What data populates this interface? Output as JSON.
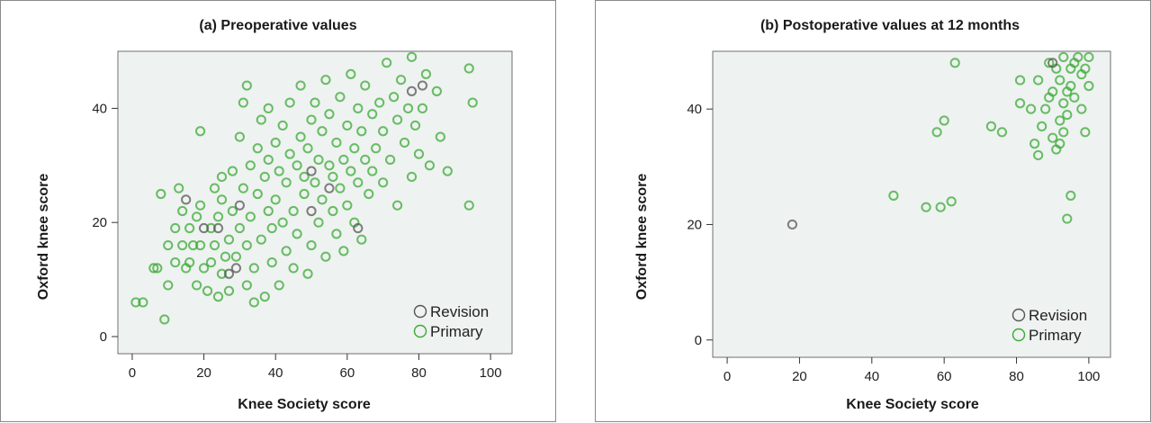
{
  "chart_data": [
    {
      "type": "scatter",
      "title": "(a) Preoperative values",
      "xlabel": "Knee Society score",
      "ylabel": "Oxford knee score",
      "xlim": [
        -4,
        106
      ],
      "ylim": [
        -3,
        50
      ],
      "xticks": [
        0,
        20,
        40,
        60,
        80,
        100
      ],
      "yticks": [
        0,
        20,
        40
      ],
      "grid": false,
      "legend_position": "bottom-right",
      "series": [
        {
          "name": "Revision",
          "color": "#555555",
          "marker": "open-circle",
          "points": [
            [
              15,
              24
            ],
            [
              20,
              19
            ],
            [
              24,
              19
            ],
            [
              27,
              11
            ],
            [
              29,
              12
            ],
            [
              30,
              23
            ],
            [
              50,
              29
            ],
            [
              50,
              22
            ],
            [
              55,
              26
            ],
            [
              63,
              19
            ],
            [
              78,
              43
            ],
            [
              81,
              44
            ]
          ]
        },
        {
          "name": "Primary",
          "color": "#3aaa35",
          "marker": "open-circle",
          "points": [
            [
              1,
              6
            ],
            [
              3,
              6
            ],
            [
              6,
              12
            ],
            [
              7,
              12
            ],
            [
              8,
              25
            ],
            [
              9,
              3
            ],
            [
              10,
              16
            ],
            [
              10,
              9
            ],
            [
              12,
              19
            ],
            [
              12,
              13
            ],
            [
              13,
              26
            ],
            [
              14,
              22
            ],
            [
              14,
              16
            ],
            [
              15,
              12
            ],
            [
              16,
              19
            ],
            [
              16,
              13
            ],
            [
              17,
              16
            ],
            [
              18,
              21
            ],
            [
              18,
              9
            ],
            [
              19,
              36
            ],
            [
              19,
              23
            ],
            [
              19,
              16
            ],
            [
              20,
              12
            ],
            [
              21,
              8
            ],
            [
              22,
              19
            ],
            [
              22,
              13
            ],
            [
              23,
              16
            ],
            [
              23,
              26
            ],
            [
              24,
              21
            ],
            [
              24,
              7
            ],
            [
              25,
              24
            ],
            [
              25,
              11
            ],
            [
              25,
              28
            ],
            [
              26,
              14
            ],
            [
              27,
              8
            ],
            [
              27,
              17
            ],
            [
              28,
              22
            ],
            [
              28,
              29
            ],
            [
              29,
              14
            ],
            [
              30,
              19
            ],
            [
              30,
              35
            ],
            [
              31,
              41
            ],
            [
              31,
              26
            ],
            [
              32,
              9
            ],
            [
              32,
              44
            ],
            [
              32,
              16
            ],
            [
              33,
              21
            ],
            [
              33,
              30
            ],
            [
              34,
              12
            ],
            [
              34,
              6
            ],
            [
              35,
              25
            ],
            [
              35,
              33
            ],
            [
              36,
              17
            ],
            [
              36,
              38
            ],
            [
              37,
              28
            ],
            [
              37,
              7
            ],
            [
              38,
              22
            ],
            [
              38,
              31
            ],
            [
              38,
              40
            ],
            [
              39,
              13
            ],
            [
              39,
              19
            ],
            [
              40,
              24
            ],
            [
              40,
              34
            ],
            [
              41,
              29
            ],
            [
              41,
              9
            ],
            [
              42,
              20
            ],
            [
              42,
              37
            ],
            [
              43,
              27
            ],
            [
              43,
              15
            ],
            [
              44,
              32
            ],
            [
              44,
              41
            ],
            [
              45,
              22
            ],
            [
              45,
              12
            ],
            [
              46,
              30
            ],
            [
              46,
              18
            ],
            [
              47,
              35
            ],
            [
              47,
              44
            ],
            [
              48,
              25
            ],
            [
              48,
              28
            ],
            [
              49,
              33
            ],
            [
              49,
              11
            ],
            [
              50,
              38
            ],
            [
              50,
              16
            ],
            [
              51,
              27
            ],
            [
              51,
              41
            ],
            [
              52,
              31
            ],
            [
              52,
              20
            ],
            [
              53,
              24
            ],
            [
              53,
              36
            ],
            [
              54,
              14
            ],
            [
              54,
              45
            ],
            [
              55,
              30
            ],
            [
              55,
              39
            ],
            [
              56,
              22
            ],
            [
              56,
              28
            ],
            [
              57,
              34
            ],
            [
              57,
              18
            ],
            [
              58,
              42
            ],
            [
              58,
              26
            ],
            [
              59,
              31
            ],
            [
              59,
              15
            ],
            [
              60,
              37
            ],
            [
              60,
              23
            ],
            [
              61,
              29
            ],
            [
              61,
              46
            ],
            [
              62,
              33
            ],
            [
              62,
              20
            ],
            [
              63,
              40
            ],
            [
              63,
              27
            ],
            [
              64,
              36
            ],
            [
              64,
              17
            ],
            [
              65,
              44
            ],
            [
              65,
              31
            ],
            [
              66,
              25
            ],
            [
              67,
              39
            ],
            [
              67,
              29
            ],
            [
              68,
              33
            ],
            [
              69,
              41
            ],
            [
              70,
              36
            ],
            [
              70,
              27
            ],
            [
              71,
              48
            ],
            [
              72,
              31
            ],
            [
              73,
              42
            ],
            [
              74,
              38
            ],
            [
              74,
              23
            ],
            [
              75,
              45
            ],
            [
              76,
              34
            ],
            [
              77,
              40
            ],
            [
              78,
              49
            ],
            [
              78,
              28
            ],
            [
              79,
              37
            ],
            [
              80,
              32
            ],
            [
              81,
              40
            ],
            [
              82,
              46
            ],
            [
              83,
              30
            ],
            [
              85,
              43
            ],
            [
              86,
              35
            ],
            [
              88,
              29
            ],
            [
              94,
              47
            ],
            [
              94,
              23
            ],
            [
              95,
              41
            ]
          ]
        }
      ]
    },
    {
      "type": "scatter",
      "title": "(b) Postoperative values at 12 months",
      "xlabel": "Knee Society score",
      "ylabel": "Oxford knee score",
      "xlim": [
        -4,
        106
      ],
      "ylim": [
        -3,
        50
      ],
      "xticks": [
        0,
        20,
        40,
        60,
        80,
        100
      ],
      "yticks": [
        0,
        20,
        40
      ],
      "grid": false,
      "legend_position": "bottom-right",
      "series": [
        {
          "name": "Revision",
          "color": "#555555",
          "marker": "open-circle",
          "points": [
            [
              18,
              20
            ],
            [
              90,
              48
            ]
          ]
        },
        {
          "name": "Primary",
          "color": "#3aaa35",
          "marker": "open-circle",
          "points": [
            [
              46,
              25
            ],
            [
              55,
              23
            ],
            [
              58,
              36
            ],
            [
              59,
              23
            ],
            [
              60,
              38
            ],
            [
              62,
              24
            ],
            [
              63,
              48
            ],
            [
              73,
              37
            ],
            [
              76,
              36
            ],
            [
              81,
              45
            ],
            [
              81,
              41
            ],
            [
              84,
              40
            ],
            [
              85,
              34
            ],
            [
              86,
              32
            ],
            [
              86,
              45
            ],
            [
              87,
              37
            ],
            [
              88,
              40
            ],
            [
              89,
              48
            ],
            [
              89,
              42
            ],
            [
              90,
              43
            ],
            [
              90,
              35
            ],
            [
              91,
              33
            ],
            [
              91,
              47
            ],
            [
              92,
              38
            ],
            [
              92,
              34
            ],
            [
              92,
              45
            ],
            [
              93,
              41
            ],
            [
              93,
              49
            ],
            [
              93,
              36
            ],
            [
              94,
              43
            ],
            [
              94,
              39
            ],
            [
              94,
              21
            ],
            [
              95,
              47
            ],
            [
              95,
              44
            ],
            [
              95,
              25
            ],
            [
              96,
              42
            ],
            [
              96,
              48
            ],
            [
              97,
              49
            ],
            [
              98,
              46
            ],
            [
              98,
              40
            ],
            [
              99,
              47
            ],
            [
              99,
              36
            ],
            [
              100,
              44
            ],
            [
              100,
              49
            ]
          ]
        }
      ]
    }
  ]
}
